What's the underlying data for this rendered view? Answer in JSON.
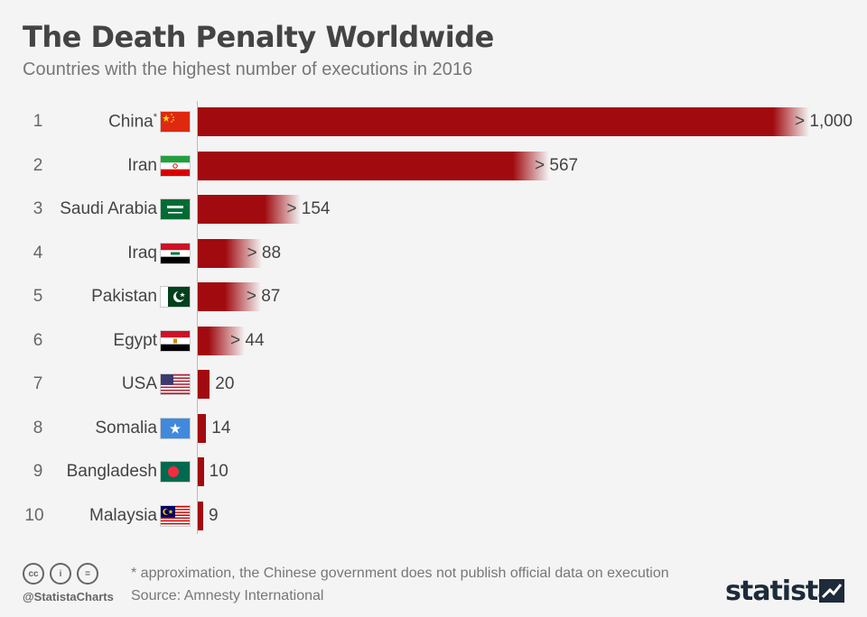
{
  "header": {
    "title": "The Death Penalty Worldwide",
    "subtitle": "Countries with the highest number of executions in 2016"
  },
  "chart_data": {
    "type": "bar",
    "orientation": "horizontal",
    "title": "The Death Penalty Worldwide",
    "subtitle": "Countries with the highest number of executions in 2016",
    "ranks": [
      "1",
      "2",
      "3",
      "4",
      "5",
      "6",
      "7",
      "8",
      "9",
      "10"
    ],
    "categories": [
      "China",
      "Iran",
      "Saudi Arabia",
      "Iraq",
      "Pakistan",
      "Egypt",
      "USA",
      "Somalia",
      "Bangladesh",
      "Malaysia"
    ],
    "values": [
      1000,
      567,
      154,
      88,
      87,
      44,
      20,
      14,
      10,
      9
    ],
    "value_labels": [
      "> 1,000",
      "> 567",
      "> 154",
      "> 88",
      "> 87",
      "> 44",
      "20",
      "14",
      "10",
      "9"
    ],
    "fade_end": [
      true,
      true,
      true,
      true,
      true,
      true,
      false,
      false,
      false,
      false
    ],
    "footnote_marker": [
      "*",
      "",
      "",
      "",
      "",
      "",
      "",
      "",
      "",
      ""
    ],
    "flags": [
      "china-flag",
      "iran-flag",
      "saudi-arabia-flag",
      "iraq-flag",
      "pakistan-flag",
      "egypt-flag",
      "usa-flag",
      "somalia-flag",
      "bangladesh-flag",
      "malaysia-flag"
    ],
    "bar_color": "#a10b10",
    "background": "#f4f4f4"
  },
  "footer": {
    "note": "* approximation, the Chinese government does not publish official data on execution",
    "source": "Source: Amnesty International",
    "handle": "@StatistaCharts",
    "logo": "statista",
    "license_icons": [
      "cc-icon",
      "by-icon",
      "nd-icon"
    ],
    "license_text": [
      "cc",
      "i",
      "="
    ]
  }
}
